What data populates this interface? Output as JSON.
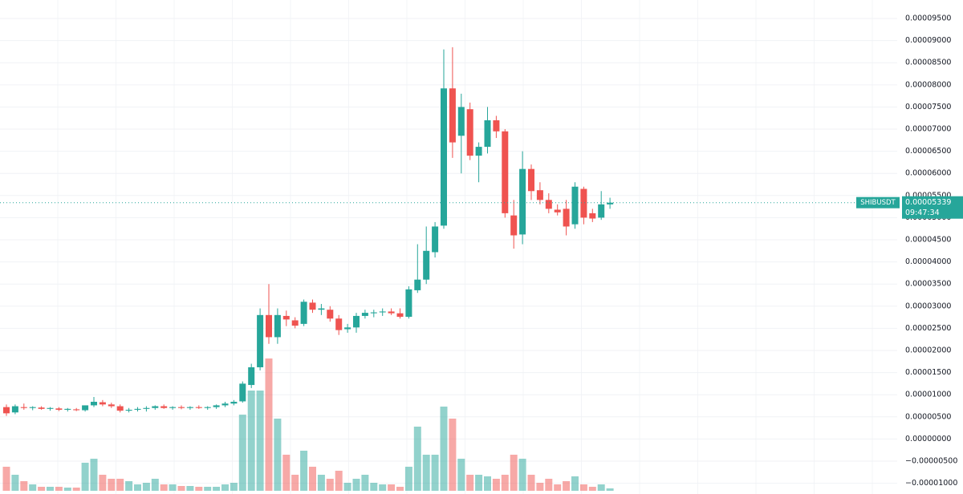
{
  "chart_data": {
    "type": "candlestick",
    "symbol": "SHIBUSDT",
    "last_price": {
      "value": 5.339e-05,
      "label": "0.00005339"
    },
    "countdown": "09:47:34",
    "up_color": "#26a69a",
    "down_color": "#ef5350",
    "grid": true,
    "ylim": [
      -1.243e-05,
      9.917e-05
    ],
    "yticks": [
      {
        "value": 9.5e-05,
        "label": "0.00009500"
      },
      {
        "value": 9e-05,
        "label": "0.00009000"
      },
      {
        "value": 8.5e-05,
        "label": "0.00008500"
      },
      {
        "value": 8e-05,
        "label": "0.00008000"
      },
      {
        "value": 7.5e-05,
        "label": "0.00007500"
      },
      {
        "value": 7e-05,
        "label": "0.00007000"
      },
      {
        "value": 6.5e-05,
        "label": "0.00006500"
      },
      {
        "value": 6e-05,
        "label": "0.00006000"
      },
      {
        "value": 5.5e-05,
        "label": "0.00005500"
      },
      {
        "value": 5e-05,
        "label": "0.00005000"
      },
      {
        "value": 4.5e-05,
        "label": "0.00004500"
      },
      {
        "value": 4e-05,
        "label": "0.00004000"
      },
      {
        "value": 3.5e-05,
        "label": "0.00003500"
      },
      {
        "value": 3e-05,
        "label": "0.00003000"
      },
      {
        "value": 2.5e-05,
        "label": "0.00002500"
      },
      {
        "value": 2e-05,
        "label": "0.00002000"
      },
      {
        "value": 1.5e-05,
        "label": "0.00001500"
      },
      {
        "value": 1e-05,
        "label": "0.00001000"
      },
      {
        "value": 5e-06,
        "label": "0.00000500"
      },
      {
        "value": 0,
        "label": "0.00000000"
      },
      {
        "value": -5e-06,
        "label": "−0.00000500"
      },
      {
        "value": -1e-05,
        "label": "−0.00001000"
      }
    ],
    "open": [
      7.2e-06,
      6e-06,
      7.2e-06,
      7e-06,
      7.1e-06,
      6.8e-06,
      6.9e-06,
      6.6e-06,
      6.7e-06,
      6.5e-06,
      7.6e-06,
      8.3e-06,
      7.8e-06,
      7.4e-06,
      6.4e-06,
      6.6e-06,
      6.8e-06,
      7e-06,
      7.4e-06,
      7e-06,
      7.2e-06,
      7e-06,
      7.2e-06,
      7e-06,
      7.2e-06,
      7.6e-06,
      8e-06,
      8.5e-06,
      1.22e-05,
      1.62e-05,
      2.8e-05,
      2.3e-05,
      2.78e-05,
      2.68e-05,
      2.6e-05,
      3.08e-05,
      2.92e-05,
      2.92e-05,
      2.72e-05,
      2.48e-05,
      2.52e-05,
      2.78e-05,
      2.84e-05,
      2.86e-05,
      2.88e-05,
      2.84e-05,
      2.76e-05,
      3.36e-05,
      3.6e-05,
      4.22e-05,
      4.82e-05,
      7.92e-05,
      6.85e-05,
      7.45e-05,
      6.4e-05,
      6.6e-05,
      7.2e-05,
      6.95e-05,
      5.05e-05,
      4.62e-05,
      6.1e-05,
      5.62e-05,
      5.4e-05,
      5.18e-05,
      5.2e-05,
      4.85e-05,
      5.65e-05,
      5.1e-05,
      5e-05,
      5.3e-05
    ],
    "high": [
      7.8e-06,
      7.8e-06,
      8e-06,
      7.4e-06,
      7.4e-06,
      7.2e-06,
      7.2e-06,
      7e-06,
      7e-06,
      7.4e-06,
      9.5e-06,
      8.8e-06,
      8.2e-06,
      7.8e-06,
      7e-06,
      7.2e-06,
      7.4e-06,
      7.6e-06,
      7.8e-06,
      7.4e-06,
      7.6e-06,
      7.4e-06,
      7.6e-06,
      7.4e-06,
      7.8e-06,
      8.4e-06,
      8.8e-06,
      1.3e-05,
      1.7e-05,
      2.95e-05,
      3.5e-05,
      2.95e-05,
      2.9e-05,
      2.75e-05,
      3.15e-05,
      3.15e-05,
      3.05e-05,
      3e-05,
      2.8e-05,
      2.6e-05,
      2.85e-05,
      2.92e-05,
      2.92e-05,
      2.95e-05,
      2.95e-05,
      2.95e-05,
      3.45e-05,
      4.4e-05,
      4.8e-05,
      4.9e-05,
      8.8e-05,
      8.85e-05,
      7.8e-05,
      7.6e-05,
      6.7e-05,
      7.5e-05,
      7.3e-05,
      7e-05,
      5.4e-05,
      6.5e-05,
      6.2e-05,
      5.8e-05,
      5.55e-05,
      5.3e-05,
      5.4e-05,
      5.8e-05,
      5.7e-05,
      5.2e-05,
      5.6e-05,
      5.45e-05
    ],
    "low": [
      5.2e-06,
      5.6e-06,
      6.6e-06,
      6.5e-06,
      6.6e-06,
      6.4e-06,
      6.3e-06,
      6.2e-06,
      6.3e-06,
      6.2e-06,
      7.2e-06,
      7.4e-06,
      7e-06,
      6e-06,
      6e-06,
      6.2e-06,
      6.2e-06,
      6.6e-06,
      6.8e-06,
      6.6e-06,
      6.7e-06,
      6.6e-06,
      6.8e-06,
      6.6e-06,
      6.8e-06,
      7.2e-06,
      7.6e-06,
      8.2e-06,
      1.15e-05,
      1.55e-05,
      2.15e-05,
      2.15e-05,
      2.55e-05,
      2.5e-05,
      2.55e-05,
      2.85e-05,
      2.8e-05,
      2.65e-05,
      2.35e-05,
      2.4e-05,
      2.4e-05,
      2.72e-05,
      2.75e-05,
      2.78e-05,
      2.8e-05,
      2.72e-05,
      2.72e-05,
      3.3e-05,
      3.5e-05,
      4.1e-05,
      4.75e-05,
      6.35e-05,
      6e-05,
      6.3e-05,
      5.8e-05,
      6.45e-05,
      6.8e-05,
      5e-05,
      4.3e-05,
      4.4e-05,
      5.4e-05,
      5.3e-05,
      5.1e-05,
      5.05e-05,
      4.6e-05,
      4.75e-05,
      4.85e-05,
      4.9e-05,
      4.95e-05,
      5.2e-05
    ],
    "close": [
      5.8e-06,
      7.4e-06,
      7e-06,
      7.2e-06,
      6.8e-06,
      7e-06,
      6.6e-06,
      6.8e-06,
      6.5e-06,
      7.6e-06,
      8.4e-06,
      7.8e-06,
      7.4e-06,
      6.4e-06,
      6.6e-06,
      6.8e-06,
      7e-06,
      7.4e-06,
      7e-06,
      7.2e-06,
      7e-06,
      7.2e-06,
      7e-06,
      7.2e-06,
      7.6e-06,
      8e-06,
      8.4e-06,
      1.25e-05,
      1.62e-05,
      2.8e-05,
      2.3e-05,
      2.8e-05,
      2.7e-05,
      2.56e-05,
      3.1e-05,
      2.92e-05,
      2.95e-05,
      2.72e-05,
      2.46e-05,
      2.52e-05,
      2.78e-05,
      2.85e-05,
      2.86e-05,
      2.88e-05,
      2.84e-05,
      2.76e-05,
      3.38e-05,
      3.6e-05,
      4.25e-05,
      4.8e-05,
      7.92e-05,
      6.7e-05,
      7.5e-05,
      6.4e-05,
      6.6e-05,
      7.2e-05,
      6.95e-05,
      5.1e-05,
      4.6e-05,
      6.1e-05,
      5.6e-05,
      5.4e-05,
      5.2e-05,
      5.12e-05,
      4.8e-05,
      5.7e-05,
      5e-05,
      4.98e-05,
      5.3e-05,
      5.339e-05
    ],
    "volume": [
      30,
      20,
      12,
      8,
      5,
      5,
      5,
      4,
      4,
      35,
      40,
      20,
      15,
      15,
      12,
      8,
      10,
      15,
      8,
      8,
      6,
      6,
      5,
      5,
      5,
      8,
      10,
      95,
      125,
      125,
      165,
      90,
      45,
      20,
      50,
      30,
      20,
      15,
      25,
      10,
      15,
      20,
      10,
      8,
      8,
      5,
      30,
      80,
      45,
      45,
      105,
      90,
      40,
      20,
      20,
      18,
      15,
      20,
      45,
      40,
      20,
      10,
      15,
      8,
      12,
      18,
      8,
      5,
      8,
      3
    ]
  }
}
